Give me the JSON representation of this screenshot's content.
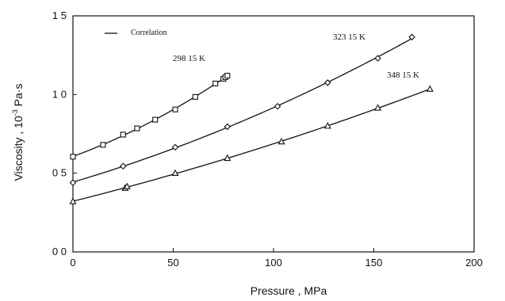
{
  "chart_data": {
    "type": "scatter",
    "xlabel": "Pressure , MPa",
    "ylabel": "Viscosity , 10",
    "ylabel_superscript": "-3",
    "ylabel_unit": " Pa·s",
    "xlim": [
      0,
      200
    ],
    "ylim": [
      0,
      1.5
    ],
    "x_ticks": [
      0,
      50,
      100,
      150,
      200
    ],
    "x_tick_labels": [
      "0",
      "50",
      "100",
      "150",
      "200"
    ],
    "y_ticks": [
      0,
      0.5,
      1.0,
      1.5
    ],
    "y_tick_labels": [
      "0 0",
      "0 5",
      "1 0",
      "1 5"
    ],
    "grid": false,
    "legend": {
      "placement": "top-left",
      "entries": [
        {
          "label": "Correlation",
          "marker": "line"
        }
      ]
    },
    "series": [
      {
        "name": "298 15 K",
        "marker": "square",
        "x": [
          0,
          15,
          25,
          32,
          41,
          51,
          61,
          71,
          75,
          76,
          77
        ],
        "y": [
          0.605,
          0.68,
          0.745,
          0.785,
          0.84,
          0.905,
          0.985,
          1.07,
          1.1,
          1.11,
          1.12
        ]
      },
      {
        "name": "323 15 K",
        "marker": "diamond",
        "x": [
          0,
          25,
          51,
          77,
          102,
          127,
          152,
          169
        ],
        "y": [
          0.44,
          0.545,
          0.665,
          0.795,
          0.925,
          1.075,
          1.23,
          1.365
        ]
      },
      {
        "name": "348 15 K",
        "marker": "triangle",
        "x": [
          0,
          26,
          27,
          51,
          77,
          104,
          127,
          152,
          178
        ],
        "y": [
          0.32,
          0.405,
          0.415,
          0.5,
          0.595,
          0.7,
          0.8,
          0.915,
          1.035
        ]
      }
    ]
  }
}
